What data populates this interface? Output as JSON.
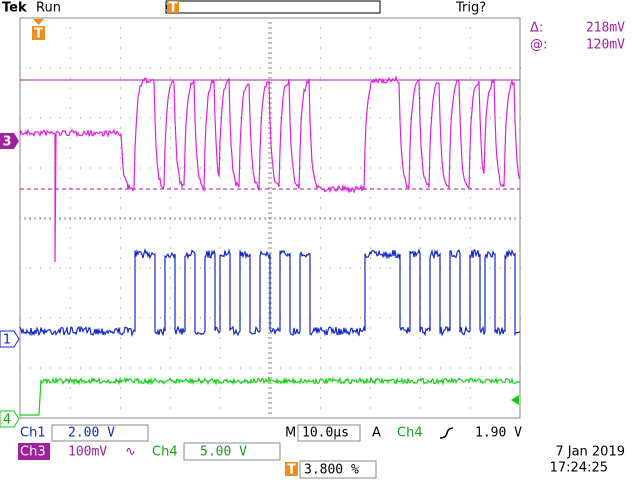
{
  "header": {
    "brand": "Tek",
    "status": "Run",
    "trigger_status": "Trig?"
  },
  "cursor_readout": {
    "delta_label": "Δ:",
    "delta": "218mV",
    "at_label": "@:",
    "at": "120mV"
  },
  "channel_markers": {
    "ch3": "3",
    "ch1": "1",
    "ch4": "4"
  },
  "settings": {
    "ch1": {
      "label": "Ch1",
      "scale": "2.00 V"
    },
    "ch3": {
      "label": "Ch3",
      "scale": "100mV"
    },
    "ch4": {
      "label": "Ch4",
      "scale": "5.00 V"
    },
    "timebase": {
      "label": "M",
      "value": "10.0µs"
    },
    "trigger": {
      "label": "A",
      "source": "Ch4",
      "level": "1.90 V"
    },
    "trigger_position": "3.800 %"
  },
  "timestamp": {
    "date": "7 Jan  2019",
    "time": "17:24:25"
  }
}
